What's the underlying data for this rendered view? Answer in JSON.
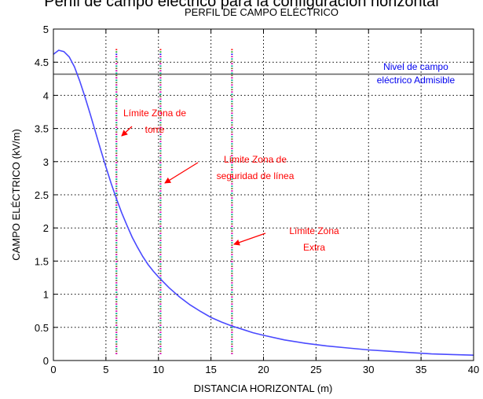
{
  "document": {
    "heading": "Perfil de campo eléctrico para la configuración horizontal"
  },
  "chart_data": {
    "type": "line",
    "title": "PERFIL DE CAMPO ELÉCTRICO",
    "xlabel": "DISTANCIA HORIZONTAL (m)",
    "ylabel": "CAMPO ELÉCTRICO (kV/m)",
    "xlim": [
      0,
      40
    ],
    "ylim": [
      0,
      5
    ],
    "xticks": [
      0,
      5,
      10,
      15,
      20,
      25,
      30,
      35,
      40
    ],
    "yticks": [
      0,
      0.5,
      1,
      1.5,
      2,
      2.5,
      3,
      3.5,
      4,
      4.5,
      5
    ],
    "grid": true,
    "series": [
      {
        "color": "#4a4aff",
        "x": [
          0,
          0.5,
          1,
          1.5,
          2,
          2.5,
          3,
          3.5,
          4,
          4.5,
          5,
          5.5,
          6,
          6.5,
          7,
          7.5,
          8,
          8.5,
          9,
          9.5,
          10,
          11,
          12,
          13,
          14,
          15,
          16,
          17,
          18,
          19,
          20,
          22,
          24,
          26,
          28,
          30,
          32,
          34,
          36,
          38,
          40
        ],
        "y": [
          4.62,
          4.68,
          4.66,
          4.58,
          4.43,
          4.22,
          3.98,
          3.72,
          3.45,
          3.18,
          2.92,
          2.67,
          2.44,
          2.23,
          2.04,
          1.86,
          1.71,
          1.57,
          1.45,
          1.35,
          1.26,
          1.1,
          0.96,
          0.84,
          0.74,
          0.65,
          0.58,
          0.52,
          0.47,
          0.42,
          0.38,
          0.31,
          0.26,
          0.22,
          0.19,
          0.16,
          0.14,
          0.12,
          0.1,
          0.09,
          0.08
        ]
      }
    ],
    "reference_lines": [
      {
        "orientation": "horizontal",
        "value": 4.32,
        "color": "#6b6b6b",
        "label": "Nivel de campo eléctrico Admisible",
        "label_color": "#0000ee"
      }
    ],
    "limit_lines": [
      {
        "x": 6,
        "y_top": 4.7,
        "label_lines": [
          "Límite Zona de",
          "torre"
        ]
      },
      {
        "x": 10.2,
        "y_top": 4.7,
        "label_lines": [
          "Límite Zona de",
          "seguridad de línea"
        ]
      },
      {
        "x": 17,
        "y_top": 4.7,
        "label_lines": [
          "Límite Zona",
          "Extra"
        ]
      }
    ],
    "annotation_color": "#ff0000"
  }
}
